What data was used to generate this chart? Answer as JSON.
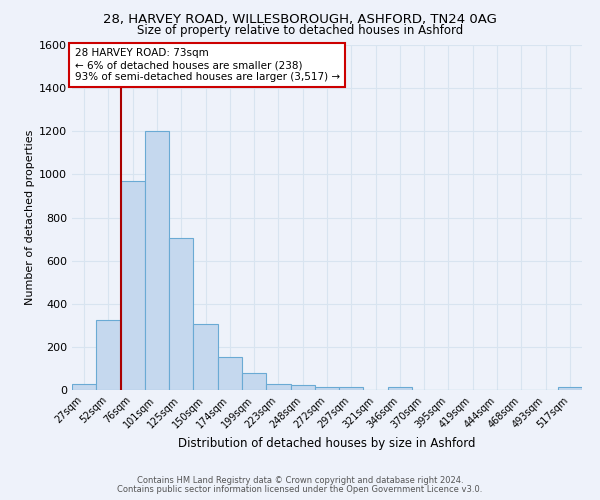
{
  "title1": "28, HARVEY ROAD, WILLESBOROUGH, ASHFORD, TN24 0AG",
  "title2": "Size of property relative to detached houses in Ashford",
  "xlabel": "Distribution of detached houses by size in Ashford",
  "ylabel": "Number of detached properties",
  "annotation_title": "28 HARVEY ROAD: 73sqm",
  "annotation_line2": "← 6% of detached houses are smaller (238)",
  "annotation_line3": "93% of semi-detached houses are larger (3,517) →",
  "bar_color": "#c5d8ee",
  "bar_edge_color": "#6aaad4",
  "highlight_line_color": "#aa0000",
  "annotation_box_color": "#cc0000",
  "background_color": "#eef2fa",
  "grid_color": "#d8e4f0",
  "categories": [
    "27sqm",
    "52sqm",
    "76sqm",
    "101sqm",
    "125sqm",
    "150sqm",
    "174sqm",
    "199sqm",
    "223sqm",
    "248sqm",
    "272sqm",
    "297sqm",
    "321sqm",
    "346sqm",
    "370sqm",
    "395sqm",
    "419sqm",
    "444sqm",
    "468sqm",
    "493sqm",
    "517sqm"
  ],
  "values": [
    30,
    325,
    970,
    1200,
    705,
    308,
    155,
    80,
    30,
    22,
    15,
    12,
    0,
    15,
    0,
    0,
    0,
    0,
    0,
    0,
    15
  ],
  "ylim": [
    0,
    1600
  ],
  "yticks": [
    0,
    200,
    400,
    600,
    800,
    1000,
    1200,
    1400,
    1600
  ],
  "footnote1": "Contains HM Land Registry data © Crown copyright and database right 2024.",
  "footnote2": "Contains public sector information licensed under the Open Government Licence v3.0."
}
